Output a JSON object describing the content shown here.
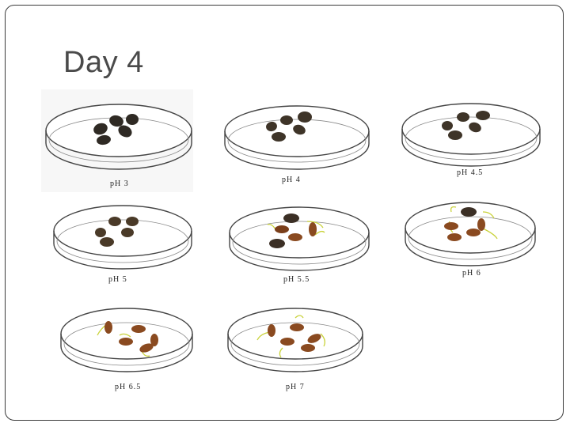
{
  "title": "Day 4",
  "dishes": [
    {
      "label": "pH 3"
    },
    {
      "label": "pH 4"
    },
    {
      "label": "pH 4.5"
    },
    {
      "label": "pH 5"
    },
    {
      "label": "pH 5.5"
    },
    {
      "label": "pH 6"
    },
    {
      "label": "pH 6.5"
    },
    {
      "label": "pH 7"
    }
  ],
  "colors": {
    "dark_seed": "#2f2a24",
    "brown_seed": "#6b4a2b",
    "germinated_seed": "#9a4a1f",
    "sprout": "#c9d23a"
  }
}
